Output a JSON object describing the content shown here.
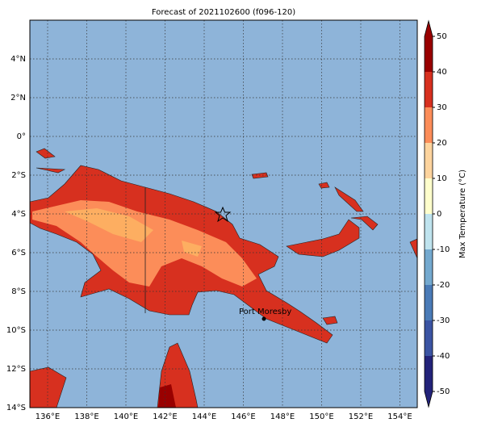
{
  "title": "Forecast of 2021102600 (f096-120)",
  "map": {
    "lon_labels": [
      "136°E",
      "138°E",
      "140°E",
      "142°E",
      "144°E",
      "146°E",
      "148°E",
      "150°E",
      "152°E",
      "154°E"
    ],
    "lat_labels": [
      "4°N",
      "2°N",
      "0°",
      "2°S",
      "4°S",
      "6°S",
      "8°S",
      "10°S",
      "12°S",
      "14°S"
    ],
    "place": "Port Moresby"
  },
  "colorbar": {
    "label": "Max Temperature (°C)",
    "ticks": [
      -50,
      -40,
      -30,
      -20,
      -10,
      0,
      10,
      20,
      30,
      40,
      50
    ],
    "colors": [
      "#23237a",
      "#3b54a3",
      "#4a7bb7",
      "#74a9cf",
      "#bfe3ee",
      "#ffffcc",
      "#fdd49e",
      "#fc8d59",
      "#d7301f",
      "#990000"
    ]
  }
}
